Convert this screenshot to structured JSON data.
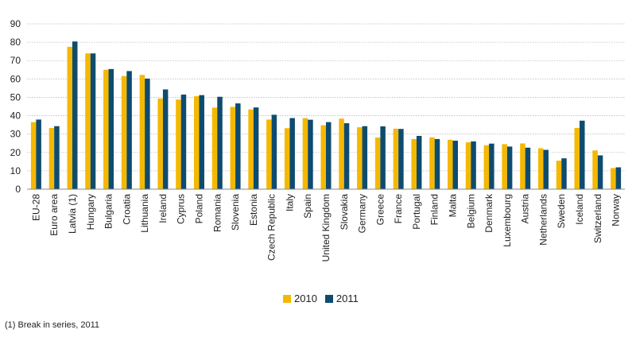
{
  "chart_data": {
    "type": "bar",
    "ylim": [
      0,
      90
    ],
    "yticks": [
      0,
      10,
      20,
      30,
      40,
      50,
      60,
      70,
      80,
      90
    ],
    "grid": true,
    "legend_position": "bottom-center",
    "categories": [
      "EU-28",
      "Euro area",
      "Latvia (1)",
      "Hungary",
      "Bulgaria",
      "Croatia",
      "Lithuania",
      "Ireland",
      "Cyprus",
      "Poland",
      "Romania",
      "Slovenia",
      "Estonia",
      "Czech Republic",
      "Italy",
      "Spain",
      "United Kingdom",
      "Slovakia",
      "Germany",
      "Greece",
      "France",
      "Portugal",
      "Finland",
      "Malta",
      "Belgium",
      "Denmark",
      "Luxembourg",
      "Austria",
      "Netherlands",
      "Sweden",
      "Iceland",
      "Switzerland",
      "Norway"
    ],
    "series": [
      {
        "name": "2010",
        "color": "#F5B800",
        "values": [
          36.5,
          33.3,
          77.5,
          73.9,
          65.0,
          61.6,
          62.2,
          49.4,
          48.8,
          50.6,
          44.4,
          44.8,
          43.4,
          37.9,
          33.2,
          38.7,
          34.8,
          38.4,
          33.7,
          28.1,
          32.9,
          27.3,
          28.2,
          26.9,
          25.5,
          23.9,
          24.5,
          24.9,
          22.3,
          15.5,
          33.3,
          21.1,
          11.5
        ]
      },
      {
        "name": "2011",
        "color": "#0E4C6F",
        "values": [
          37.9,
          34.3,
          80.4,
          73.9,
          65.4,
          64.3,
          60.2,
          54.3,
          51.5,
          51.2,
          50.3,
          46.7,
          44.5,
          40.5,
          38.7,
          37.8,
          36.5,
          35.9,
          34.3,
          34.2,
          32.8,
          29.0,
          27.3,
          26.4,
          26.0,
          24.8,
          23.2,
          22.6,
          21.4,
          16.8,
          37.3,
          18.4,
          11.9
        ]
      }
    ]
  },
  "legend": {
    "label_2010": "2010",
    "label_2011": "2011"
  },
  "footnote": "(1) Break in series, 2011"
}
